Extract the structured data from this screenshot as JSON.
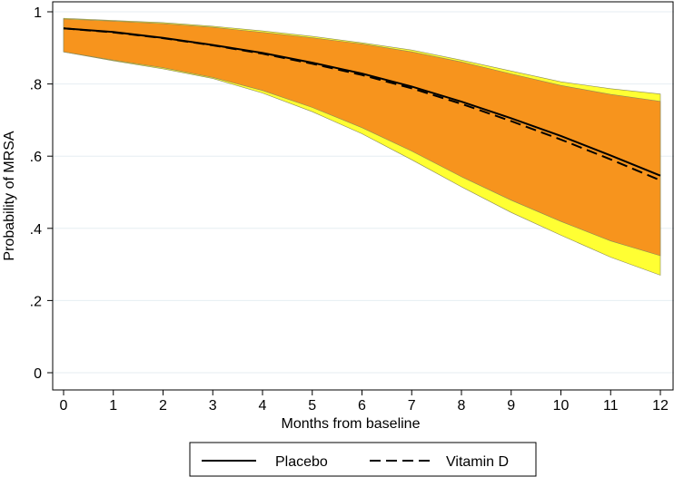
{
  "chart_data": {
    "type": "line",
    "title": "",
    "xlabel": "Months from baseline",
    "ylabel": "Probability of MRSA",
    "xlim": [
      0,
      12
    ],
    "ylim": [
      0,
      1
    ],
    "grid": true,
    "x_ticks": [
      0,
      1,
      2,
      3,
      4,
      5,
      6,
      7,
      8,
      9,
      10,
      11,
      12
    ],
    "x_tick_labels": [
      "0",
      "1",
      "2",
      "3",
      "4",
      "5",
      "6",
      "7",
      "8",
      "9",
      "10",
      "11",
      "12"
    ],
    "y_ticks": [
      0,
      0.2,
      0.4,
      0.6,
      0.8,
      1
    ],
    "y_tick_labels": [
      "0",
      ".2",
      ".4",
      ".6",
      ".8",
      "1"
    ],
    "legend_position": "bottom",
    "x": [
      0,
      1,
      2,
      3,
      4,
      5,
      6,
      7,
      8,
      9,
      10,
      11,
      12
    ],
    "series": [
      {
        "name": "Placebo",
        "line_style": "solid",
        "values": [
          0.954,
          0.944,
          0.928,
          0.908,
          0.886,
          0.859,
          0.829,
          0.793,
          0.751,
          0.705,
          0.656,
          0.602,
          0.546
        ],
        "ci_lower": [
          0.889,
          0.866,
          0.845,
          0.818,
          0.782,
          0.735,
          0.679,
          0.614,
          0.543,
          0.478,
          0.419,
          0.365,
          0.324
        ],
        "ci_upper": [
          0.98,
          0.974,
          0.967,
          0.957,
          0.943,
          0.928,
          0.911,
          0.889,
          0.861,
          0.828,
          0.796,
          0.771,
          0.752
        ],
        "ci_color": "#f7941d"
      },
      {
        "name": "Vitamin D",
        "line_style": "dashed",
        "values": [
          0.954,
          0.943,
          0.927,
          0.907,
          0.884,
          0.856,
          0.825,
          0.788,
          0.745,
          0.697,
          0.646,
          0.591,
          0.533
        ],
        "ci_lower": [
          0.889,
          0.864,
          0.842,
          0.815,
          0.775,
          0.723,
          0.662,
          0.59,
          0.515,
          0.444,
          0.381,
          0.32,
          0.27
        ],
        "ci_upper": [
          0.982,
          0.976,
          0.97,
          0.96,
          0.947,
          0.932,
          0.914,
          0.894,
          0.866,
          0.836,
          0.806,
          0.787,
          0.772
        ],
        "ci_color": "#ffff33"
      }
    ],
    "colors": {
      "line": "#000000",
      "grid": "#e6eef2",
      "frame": "#000000"
    }
  }
}
